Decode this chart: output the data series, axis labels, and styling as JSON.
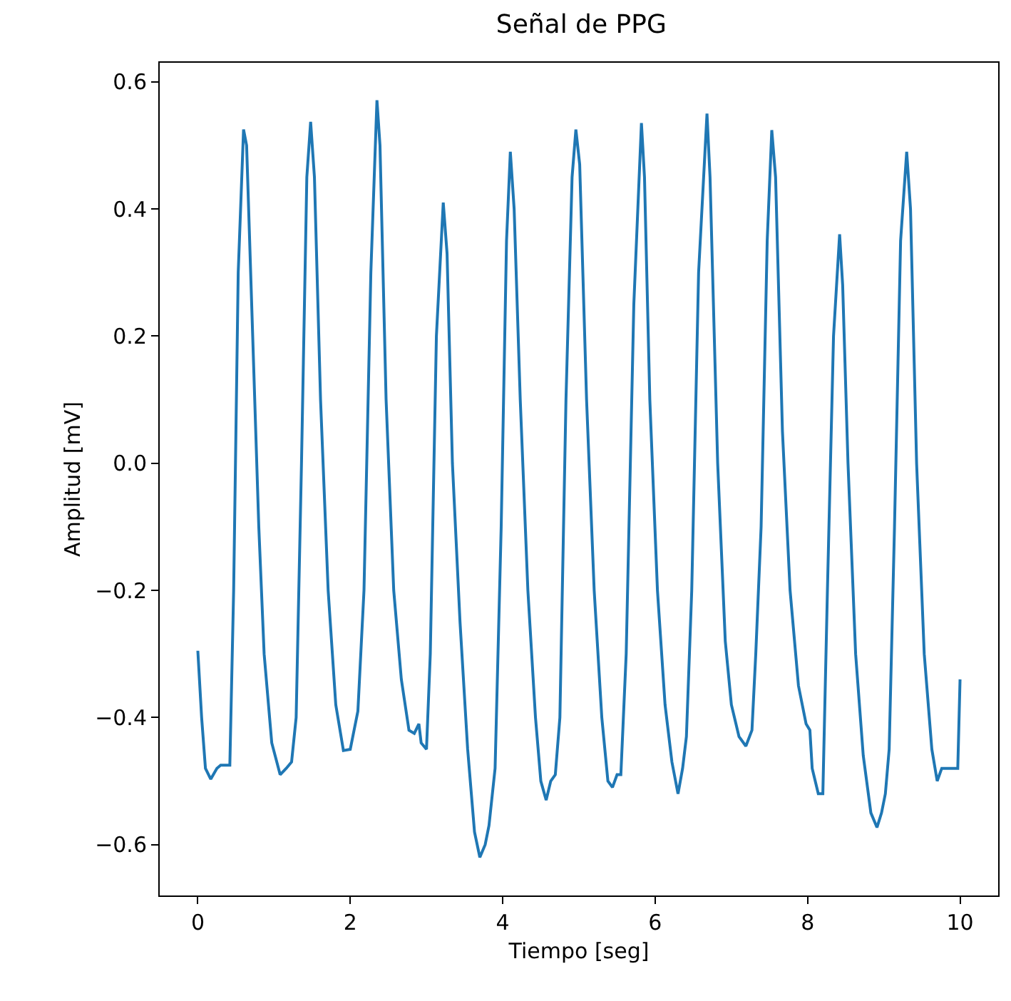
{
  "chart_data": {
    "type": "line",
    "title": "Señal de PPG",
    "xlabel": "Tiempo [seg]",
    "ylabel": "Amplitud [mV]",
    "xlim": [
      -0.5,
      10.5
    ],
    "xticks": [
      0,
      2,
      4,
      6,
      8,
      10
    ],
    "ylim": [
      -0.68,
      0.63
    ],
    "yticks": [
      {
        "value": -0.6,
        "label": "−0.6"
      },
      {
        "value": -0.4,
        "label": "−0.4"
      },
      {
        "value": -0.2,
        "label": "−0.2"
      },
      {
        "value": 0,
        "label": "0.0"
      },
      {
        "value": 0.2,
        "label": "0.2"
      },
      {
        "value": 0.4,
        "label": "0.4"
      },
      {
        "value": 0.6,
        "label": "0.6"
      }
    ],
    "marker": "none",
    "line_style": "solid",
    "series": [
      {
        "color": "#1f77b4",
        "x": [
          0,
          0.05,
          0.1,
          0.17,
          0.25,
          0.3,
          0.42,
          0.47,
          0.53,
          0.6,
          0.64,
          0.72,
          0.8,
          0.87,
          0.97,
          1.08,
          1.16,
          1.23,
          1.29,
          1.36,
          1.43,
          1.48,
          1.53,
          1.61,
          1.71,
          1.81,
          1.91,
          2.0,
          2.05,
          2.1,
          2.18,
          2.27,
          2.35,
          2.39,
          2.47,
          2.57,
          2.67,
          2.77,
          2.84,
          2.9,
          2.93,
          3.0,
          3.05,
          3.13,
          3.22,
          3.27,
          3.34,
          3.44,
          3.54,
          3.63,
          3.7,
          3.77,
          3.82,
          3.9,
          3.98,
          4.05,
          4.1,
          4.15,
          4.23,
          4.33,
          4.43,
          4.5,
          4.57,
          4.63,
          4.69,
          4.75,
          4.83,
          4.91,
          4.96,
          5.01,
          5.1,
          5.2,
          5.3,
          5.38,
          5.44,
          5.5,
          5.55,
          5.62,
          5.72,
          5.82,
          5.86,
          5.93,
          6.03,
          6.13,
          6.22,
          6.3,
          6.36,
          6.41,
          6.48,
          6.57,
          6.68,
          6.72,
          6.82,
          6.92,
          7.0,
          7.1,
          7.19,
          7.27,
          7.32,
          7.39,
          7.47,
          7.53,
          7.58,
          7.67,
          7.77,
          7.88,
          7.98,
          8.03,
          8.06,
          8.14,
          8.2,
          8.26,
          8.34,
          8.42,
          8.46,
          8.53,
          8.63,
          8.73,
          8.83,
          8.91,
          8.97,
          9.02,
          9.07,
          9.14,
          9.22,
          9.3,
          9.35,
          9.43,
          9.53,
          9.63,
          9.7,
          9.76,
          9.82,
          9.9,
          9.97,
          10.0
        ],
        "values": [
          -0.295,
          -0.4,
          -0.48,
          -0.497,
          -0.48,
          -0.475,
          -0.475,
          -0.2,
          0.3,
          0.525,
          0.5,
          0.2,
          -0.1,
          -0.3,
          -0.44,
          -0.49,
          -0.48,
          -0.47,
          -0.4,
          0.0,
          0.45,
          0.537,
          0.45,
          0.1,
          -0.2,
          -0.38,
          -0.452,
          -0.45,
          -0.42,
          -0.39,
          -0.2,
          0.3,
          0.571,
          0.5,
          0.1,
          -0.2,
          -0.34,
          -0.42,
          -0.425,
          -0.41,
          -0.44,
          -0.45,
          -0.3,
          0.2,
          0.41,
          0.33,
          0.0,
          -0.25,
          -0.45,
          -0.58,
          -0.62,
          -0.6,
          -0.57,
          -0.48,
          -0.1,
          0.35,
          0.49,
          0.4,
          0.1,
          -0.2,
          -0.4,
          -0.5,
          -0.53,
          -0.5,
          -0.49,
          -0.4,
          0.1,
          0.45,
          0.525,
          0.47,
          0.1,
          -0.2,
          -0.4,
          -0.5,
          -0.51,
          -0.49,
          -0.49,
          -0.3,
          0.25,
          0.535,
          0.45,
          0.1,
          -0.2,
          -0.38,
          -0.47,
          -0.52,
          -0.48,
          -0.43,
          -0.2,
          0.3,
          0.55,
          0.45,
          0.0,
          -0.28,
          -0.38,
          -0.43,
          -0.445,
          -0.42,
          -0.3,
          -0.1,
          0.35,
          0.524,
          0.45,
          0.05,
          -0.2,
          -0.35,
          -0.41,
          -0.42,
          -0.48,
          -0.52,
          -0.52,
          -0.2,
          0.2,
          0.36,
          0.28,
          0.0,
          -0.3,
          -0.46,
          -0.55,
          -0.573,
          -0.55,
          -0.52,
          -0.45,
          -0.1,
          0.35,
          0.49,
          0.4,
          0.0,
          -0.3,
          -0.45,
          -0.5,
          -0.48,
          -0.48,
          -0.48,
          -0.48,
          -0.34
        ]
      }
    ]
  }
}
